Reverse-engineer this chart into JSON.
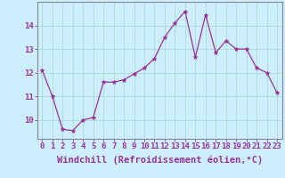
{
  "x": [
    0,
    1,
    2,
    3,
    4,
    5,
    6,
    7,
    8,
    9,
    10,
    11,
    12,
    13,
    14,
    15,
    16,
    17,
    18,
    19,
    20,
    21,
    22,
    23
  ],
  "y": [
    12.1,
    11.0,
    9.6,
    9.55,
    10.0,
    10.1,
    11.6,
    11.6,
    11.7,
    11.95,
    12.2,
    12.6,
    13.5,
    14.1,
    14.6,
    12.65,
    14.45,
    12.85,
    13.35,
    13.0,
    13.0,
    12.2,
    12.0,
    11.15
  ],
  "line_color": "#993399",
  "marker": "*",
  "marker_size": 3.5,
  "bg_color": "#cceeff",
  "grid_color": "#aaddcc",
  "xlabel": "Windchill (Refroidissement éolien,°C)",
  "xlabel_fontsize": 7.5,
  "tick_fontsize": 6.5,
  "ylim": [
    9.2,
    15.0
  ],
  "yticks": [
    10,
    11,
    12,
    13,
    14
  ],
  "xticks": [
    0,
    1,
    2,
    3,
    4,
    5,
    6,
    7,
    8,
    9,
    10,
    11,
    12,
    13,
    14,
    15,
    16,
    17,
    18,
    19,
    20,
    21,
    22,
    23
  ]
}
